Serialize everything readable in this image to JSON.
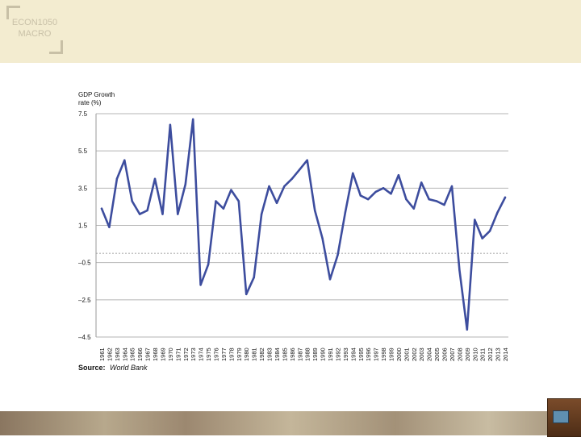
{
  "logo": {
    "line1": "ECON1050",
    "line2": "MACRO"
  },
  "chart_data": {
    "type": "line",
    "ylabel_line1": "GDP Growth",
    "ylabel_line2": "rate (%)",
    "source_label": "Source:",
    "source_value": "World Bank",
    "ylim": [
      -4.5,
      7.5
    ],
    "yticks": [
      7.5,
      5.5,
      3.5,
      1.5,
      -0.5,
      -2.5,
      -4.5
    ],
    "ytick_labels": [
      "7.5",
      "5.5",
      "3.5",
      "1.5",
      "–0.5",
      "–2.5",
      "–4.5"
    ],
    "grid": true,
    "zero_line": true,
    "series_color": "#3d4d9e",
    "categories": [
      "1961",
      "1962",
      "1963",
      "1964",
      "1965",
      "1966",
      "1967",
      "1968",
      "1969",
      "1970",
      "1971",
      "1972",
      "1973",
      "1974",
      "1975",
      "1976",
      "1977",
      "1978",
      "1979",
      "1980",
      "1981",
      "1982",
      "1983",
      "1984",
      "1985",
      "1986",
      "1987",
      "1988",
      "1989",
      "1990",
      "1991",
      "1992",
      "1993",
      "1994",
      "1995",
      "1996",
      "1997",
      "1998",
      "1999",
      "2000",
      "2001",
      "2002",
      "2003",
      "2004",
      "2005",
      "2006",
      "2007",
      "2008",
      "2009",
      "2010",
      "2011",
      "2012",
      "2013",
      "2014"
    ],
    "series": [
      {
        "values": [
          2.4,
          1.4,
          4.0,
          5.0,
          2.8,
          2.1,
          2.3,
          4.0,
          2.1,
          6.9,
          2.1,
          3.7,
          7.2,
          -1.7,
          -0.6,
          2.8,
          2.4,
          3.4,
          2.8,
          -2.2,
          -1.3,
          2.1,
          3.6,
          2.7,
          3.6,
          4.0,
          4.5,
          5.0,
          2.3,
          0.8,
          -1.4,
          -0.1,
          2.2,
          4.3,
          3.1,
          2.9,
          3.3,
          3.5,
          3.2,
          4.2,
          2.9,
          2.4,
          3.8,
          2.9,
          2.8,
          2.6,
          3.6,
          -0.9,
          -4.1,
          1.8,
          0.8,
          1.2,
          2.2,
          3.0
        ]
      }
    ]
  }
}
